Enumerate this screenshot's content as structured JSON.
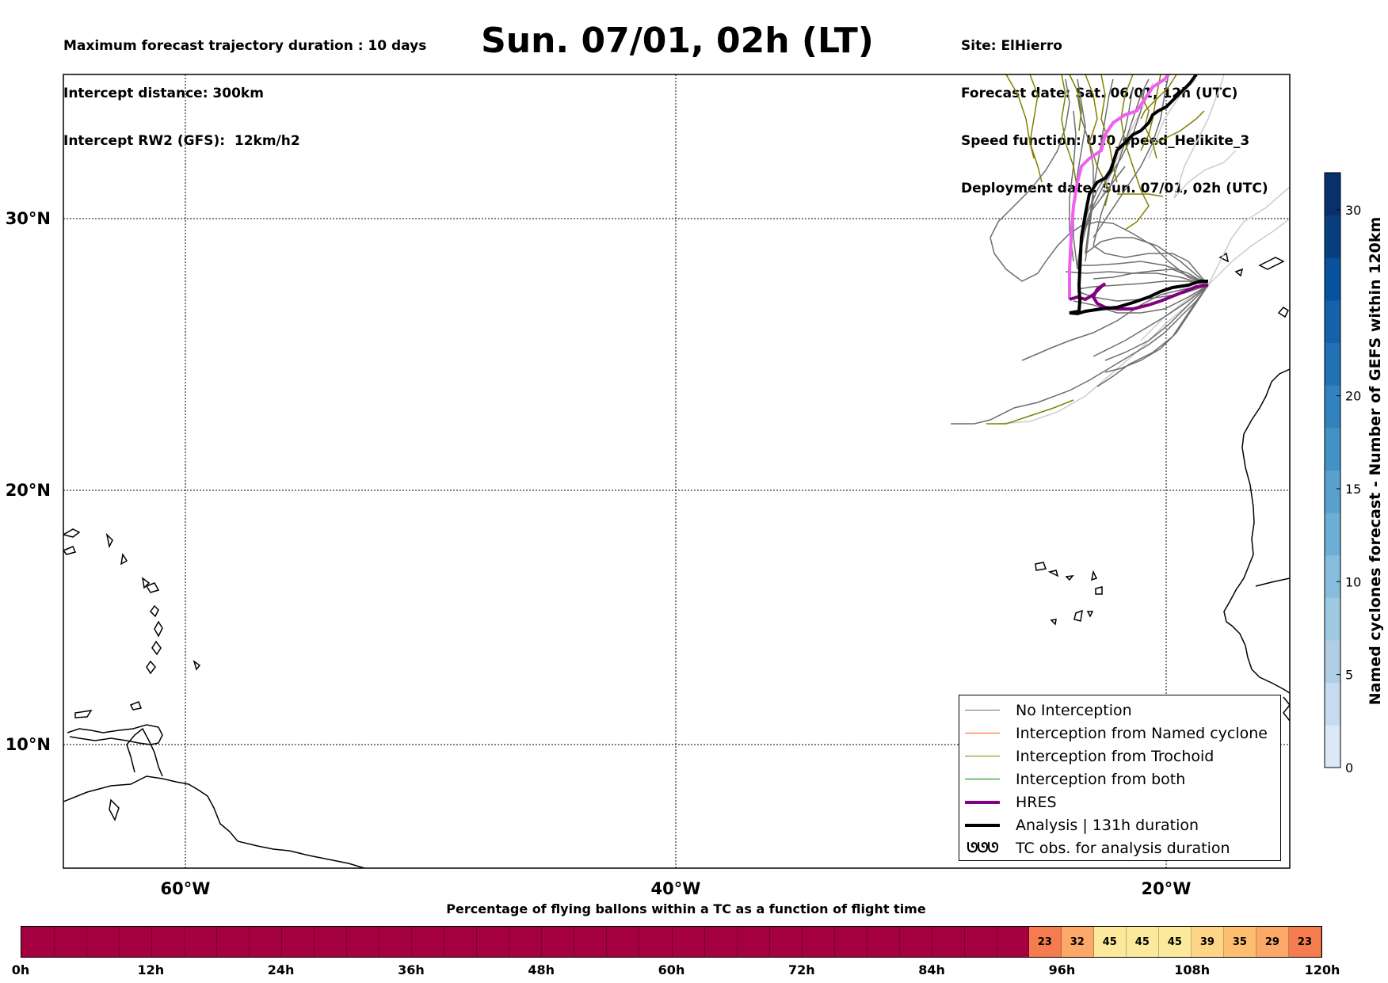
{
  "header": {
    "left": [
      "Maximum forecast trajectory duration : 10 days",
      "Intercept distance: 300km",
      "Intercept RW2 (GFS):  12km/h2"
    ],
    "title": "Sun. 07/01, 02h (LT)",
    "right": [
      "Site: ElHierro",
      "Forecast date: Sat. 06/01, 12h (UTC)",
      "Speed function: U10_speed_Helikite_3",
      "Deployment date: Sun. 07/01, 02h (UTC)"
    ]
  },
  "map": {
    "lat_labels": [
      "30°N",
      "20°N",
      "10°N"
    ],
    "lon_labels": [
      "60°W",
      "40°W",
      "20°W"
    ],
    "colors": {
      "no_interception": "#6e6e6e",
      "faint_members": "#cccccc",
      "named_cyclone": "#ff5a1f",
      "trochoid": "#808000",
      "both": "#008000",
      "hres": "#800080",
      "analysis": "#000000",
      "late_ensemble": "#f060f0"
    }
  },
  "legend": {
    "items": [
      {
        "label": "No Interception",
        "color": "#6e6e6e",
        "style": "thin"
      },
      {
        "label": "Interception from Named cyclone",
        "color": "#ff5a1f",
        "style": "thin"
      },
      {
        "label": "Interception from Trochoid",
        "color": "#808000",
        "style": "thin"
      },
      {
        "label": "Interception from both",
        "color": "#008000",
        "style": "thin"
      },
      {
        "label": "HRES",
        "color": "#800080",
        "style": "thick"
      },
      {
        "label": "Analysis | 131h duration",
        "color": "#000000",
        "style": "thick"
      },
      {
        "label": "TC obs. for analysis duration",
        "color": "#000000",
        "style": "symbol",
        "symbol": "ᘎᘎᘎ"
      }
    ]
  },
  "colorbar": {
    "label": "Named cyclones forecast - Number of GEFS within 120km",
    "ticks": [
      "0",
      "5",
      "10",
      "15",
      "20",
      "30"
    ],
    "tick_values": [
      0,
      5,
      10,
      15,
      20,
      30
    ],
    "max_value": 32,
    "colors": [
      "#dbe8f6",
      "#c6dbef",
      "#b0cfe7",
      "#9ecae1",
      "#86bddc",
      "#6baed6",
      "#5aa0cf",
      "#4292c6",
      "#3182bd",
      "#2171b5",
      "#1561aa",
      "#08519c",
      "#083f80",
      "#08306b"
    ]
  },
  "pct_bar": {
    "title": "Percentage of flying ballons within a TC as a function of flight time",
    "ticks": [
      "0h",
      "12h",
      "24h",
      "36h",
      "48h",
      "60h",
      "72h",
      "84h",
      "96h",
      "108h",
      "120h"
    ],
    "cells": [
      {
        "from_h": 0,
        "to_h": 93,
        "value": "",
        "color": "#a50040"
      },
      {
        "from_h": 93,
        "to_h": 96,
        "value": "23",
        "color": "#f47c4e"
      },
      {
        "from_h": 96,
        "to_h": 99,
        "value": "32",
        "color": "#fba868"
      },
      {
        "from_h": 99,
        "to_h": 102,
        "value": "45",
        "color": "#fde99b"
      },
      {
        "from_h": 102,
        "to_h": 105,
        "value": "45",
        "color": "#fde99b"
      },
      {
        "from_h": 105,
        "to_h": 108,
        "value": "45",
        "color": "#fde99b"
      },
      {
        "from_h": 108,
        "to_h": 111,
        "value": "39",
        "color": "#fed487"
      },
      {
        "from_h": 111,
        "to_h": 114,
        "value": "35",
        "color": "#fdbf6f"
      },
      {
        "from_h": 114,
        "to_h": 117,
        "value": "29",
        "color": "#fba868"
      },
      {
        "from_h": 117,
        "to_h": 120,
        "value": "23",
        "color": "#f47c4e"
      }
    ]
  }
}
